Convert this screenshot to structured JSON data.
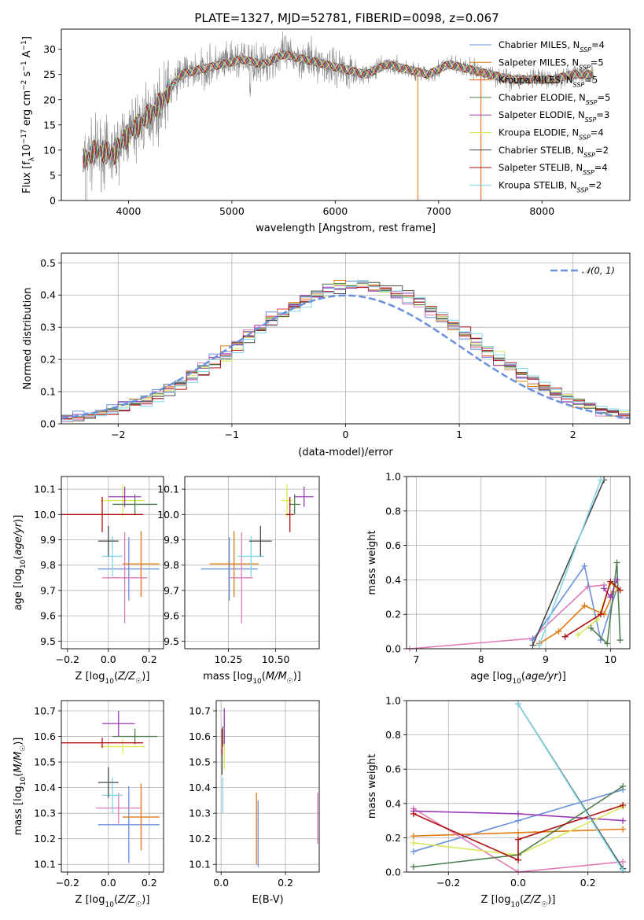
{
  "figure": {
    "title": "PLATE=1327, MJD=52781, FIBERID=0098, z=0.067"
  },
  "colors": {
    "Chabrier MILES": "#6a8fdc",
    "Salpeter MILES": "#e07a12",
    "Kroupa MILES": "#e06010",
    "Chabrier ELODIE": "#4f7f4f",
    "Salpeter ELODIE": "#9b3bb5",
    "Kroupa ELODIE": "#d8e85a",
    "Chabrier STELIB": "#4a4a4a",
    "Salpeter STELIB": "#b01010",
    "Kroupa STELIB": "#7fd6e6",
    "pink": "#e07bb8",
    "grey": "#8a8a8a"
  },
  "chart_data": [
    {
      "id": "spectrum",
      "type": "line",
      "title": "PLATE=1327, MJD=52781, FIBERID=0098, z=0.067",
      "xlabel": "wavelength [Angstrom, rest frame]",
      "ylabel": "Flux [f_λ 10^-17 erg cm^-2 s^-1 A^-1]",
      "xlim": [
        3350,
        8850
      ],
      "ylim": [
        0,
        34
      ],
      "xticks": [
        4000,
        5000,
        6000,
        7000,
        8000
      ],
      "yticks": [
        0,
        5,
        10,
        15,
        20,
        25,
        30
      ],
      "grid": false,
      "legend_position": "top-right",
      "continuum": {
        "x": [
          3560,
          3700,
          3850,
          3950,
          4100,
          4300,
          4500,
          4700,
          4900,
          5100,
          5300,
          5500,
          5700,
          5900,
          6100,
          6300,
          6500,
          6700,
          6900,
          7100,
          7300,
          7500,
          7700,
          7900,
          8100,
          8300,
          8500
        ],
        "y": [
          8,
          10,
          9,
          12,
          15,
          19,
          25,
          26,
          27,
          28,
          27,
          29,
          28,
          27,
          26,
          25,
          27,
          26,
          25,
          27,
          26,
          25,
          24,
          24,
          24,
          25,
          25
        ]
      },
      "series": [
        {
          "name": "Chabrier MILES, N_SSP=4",
          "color": "#6a8fdc"
        },
        {
          "name": "Salpeter MILES, N_SSP=5",
          "color": "#e07a12"
        },
        {
          "name": "Kroupa MILES, N_SSP=5",
          "color": "#e06010"
        },
        {
          "name": "Chabrier ELODIE, N_SSP=5",
          "color": "#4f7f4f"
        },
        {
          "name": "Salpeter ELODIE, N_SSP=3",
          "color": "#9b3bb5"
        },
        {
          "name": "Kroupa ELODIE, N_SSP=4",
          "color": "#d8e85a"
        },
        {
          "name": "Chabrier STELIB, N_SSP=2",
          "color": "#4a4a4a"
        },
        {
          "name": "Salpeter STELIB, N_SSP=4",
          "color": "#b01010"
        },
        {
          "name": "Kroupa STELIB, N_SSP=2",
          "color": "#7fd6e6"
        }
      ],
      "legend": [
        {
          "label": "Chabrier MILES, N",
          "sub": "SSP",
          "suffix": "=4",
          "color": "#6a8fdc"
        },
        {
          "label": "Salpeter MILES, N",
          "sub": "SSP",
          "suffix": "=5",
          "color": "#e07a12"
        },
        {
          "label": "Kroupa MILES, N",
          "sub": "SSP",
          "suffix": "=5",
          "color": "#e06010"
        },
        {
          "label": "Chabrier ELODIE, N",
          "sub": "SSP",
          "suffix": "=5",
          "color": "#4f7f4f"
        },
        {
          "label": "Salpeter ELODIE, N",
          "sub": "SSP",
          "suffix": "=3",
          "color": "#9b3bb5"
        },
        {
          "label": "Kroupa ELODIE, N",
          "sub": "SSP",
          "suffix": "=4",
          "color": "#d8e85a"
        },
        {
          "label": "Chabrier STELIB, N",
          "sub": "SSP",
          "suffix": "=2",
          "color": "#4a4a4a"
        },
        {
          "label": "Salpeter STELIB, N",
          "sub": "SSP",
          "suffix": "=4",
          "color": "#b01010"
        },
        {
          "label": "Kroupa STELIB, N",
          "sub": "SSP",
          "suffix": "=2",
          "color": "#7fd6e6"
        }
      ]
    },
    {
      "id": "residuals",
      "type": "line",
      "xlabel": "(data-model)/error",
      "ylabel": "Normed distribution",
      "xlim": [
        -2.5,
        2.5
      ],
      "ylim": [
        0,
        0.53
      ],
      "xticks": [
        -2,
        -1,
        0,
        1,
        2
      ],
      "yticks": [
        0.0,
        0.1,
        0.2,
        0.3,
        0.4,
        0.5
      ],
      "grid": true,
      "legend_position": "top-right",
      "legend": "𝒩(0, 1)",
      "gaussian": {
        "mu": 0,
        "sigma": 1
      },
      "bin_width": 0.1
    },
    {
      "id": "age-vs-Z",
      "type": "scatter",
      "xlabel": "Z [log10(Z/Z☉)]",
      "ylabel": "age  [log10(age/yr)]",
      "xlim": [
        -0.23,
        0.27
      ],
      "ylim": [
        9.47,
        10.15
      ],
      "xticks": [
        -0.2,
        0.0,
        0.2
      ],
      "yticks": [
        9.5,
        9.6,
        9.7,
        9.8,
        9.9,
        10.0,
        10.1
      ],
      "grid": true,
      "points": [
        {
          "x": 0.1,
          "y": 9.785,
          "xerr": 0.15,
          "yerr": 0.125,
          "color": "#6a8fdc"
        },
        {
          "x": 0.16,
          "y": 9.805,
          "xerr": 0.09,
          "yerr": 0.13,
          "color": "#e07a12"
        },
        {
          "x": 0.08,
          "y": 9.75,
          "xerr": 0.11,
          "yerr": 0.18,
          "color": "#e07bb8"
        },
        {
          "x": 0.02,
          "y": 9.835,
          "xerr": 0.05,
          "yerr": 0.08,
          "color": "#7fd6e6"
        },
        {
          "x": 0.0,
          "y": 9.895,
          "xerr": 0.05,
          "yerr": 0.06,
          "color": "#4a4a4a"
        },
        {
          "x": 0.07,
          "y": 10.055,
          "xerr": 0.11,
          "yerr": 0.065,
          "color": "#d8e85a"
        },
        {
          "x": 0.13,
          "y": 10.04,
          "xerr": 0.11,
          "yerr": 0.04,
          "color": "#4f7f4f"
        },
        {
          "x": 0.08,
          "y": 10.07,
          "xerr": 0.08,
          "yerr": 0.04,
          "color": "#9b3bb5"
        },
        {
          "x": -0.03,
          "y": 10.0,
          "xerr": 0.2,
          "yerr": 0.07,
          "color": "#b01010"
        }
      ]
    },
    {
      "id": "age-vs-mass",
      "type": "scatter",
      "xlabel": "mass [log10(M/M☉)]",
      "ylabel": "",
      "xlim": [
        10.02,
        10.73
      ],
      "ylim": [
        9.47,
        10.15
      ],
      "xticks": [
        10.25,
        10.5
      ],
      "xticklabels": [
        "10.25",
        "10.50"
      ],
      "yticks": [
        9.5,
        9.6,
        9.7,
        9.8,
        9.9,
        10.0,
        10.1
      ],
      "grid": true,
      "points": [
        {
          "x": 10.255,
          "y": 9.785,
          "xerr": 0.15,
          "yerr": 0.125,
          "color": "#6a8fdc"
        },
        {
          "x": 10.28,
          "y": 9.805,
          "xerr": 0.13,
          "yerr": 0.13,
          "color": "#e07a12"
        },
        {
          "x": 10.32,
          "y": 9.75,
          "xerr": 0.06,
          "yerr": 0.18,
          "color": "#e07bb8"
        },
        {
          "x": 10.37,
          "y": 9.835,
          "xerr": 0.07,
          "yerr": 0.08,
          "color": "#7fd6e6"
        },
        {
          "x": 10.42,
          "y": 9.895,
          "xerr": 0.06,
          "yerr": 0.06,
          "color": "#4a4a4a"
        },
        {
          "x": 10.56,
          "y": 10.055,
          "xerr": 0.03,
          "yerr": 0.065,
          "color": "#d8e85a"
        },
        {
          "x": 10.6,
          "y": 10.04,
          "xerr": 0.03,
          "yerr": 0.04,
          "color": "#4f7f4f"
        },
        {
          "x": 10.65,
          "y": 10.07,
          "xerr": 0.05,
          "yerr": 0.04,
          "color": "#9b3bb5"
        },
        {
          "x": 10.575,
          "y": 10.0,
          "xerr": 0.02,
          "yerr": 0.07,
          "color": "#b01010"
        }
      ]
    },
    {
      "id": "weight-vs-age",
      "type": "line",
      "xlabel": "age  [log10(age/yr)]",
      "ylabel": "mass weight",
      "xlim": [
        6.85,
        10.3
      ],
      "ylim": [
        0,
        1.0
      ],
      "xticks": [
        7,
        8,
        9,
        10
      ],
      "yticks": [
        0.0,
        0.2,
        0.4,
        0.6,
        0.8,
        1.0
      ],
      "grid": true,
      "series": [
        {
          "color": "#e07bb8",
          "x": [
            6.9,
            8.8,
            9.65,
            9.9
          ],
          "y": [
            0.0,
            0.06,
            0.36,
            0.37
          ]
        },
        {
          "color": "#6a8fdc",
          "x": [
            8.8,
            9.6,
            9.85,
            10.1
          ],
          "y": [
            0.05,
            0.48,
            0.05,
            0.35
          ]
        },
        {
          "color": "#e07a12",
          "x": [
            8.9,
            9.2,
            9.6,
            9.9,
            10.05
          ],
          "y": [
            0.03,
            0.1,
            0.25,
            0.2,
            0.33
          ]
        },
        {
          "color": "#d8e85a",
          "x": [
            9.5,
            9.8,
            10.0,
            10.1
          ],
          "y": [
            0.08,
            0.17,
            0.38,
            0.35
          ]
        },
        {
          "color": "#4f7f4f",
          "x": [
            9.7,
            9.95,
            10.1,
            10.15
          ],
          "y": [
            0.12,
            0.03,
            0.5,
            0.05
          ]
        },
        {
          "color": "#9b3bb5",
          "x": [
            9.9,
            10.0,
            10.1
          ],
          "y": [
            0.35,
            0.3,
            0.4
          ]
        },
        {
          "color": "#b01010",
          "x": [
            9.3,
            9.85,
            10.0,
            10.15
          ],
          "y": [
            0.07,
            0.2,
            0.39,
            0.34
          ]
        },
        {
          "color": "#4a4a4a",
          "x": [
            8.8,
            9.9
          ],
          "y": [
            0.02,
            0.98
          ]
        },
        {
          "color": "#7fd6e6",
          "x": [
            8.9,
            9.85
          ],
          "y": [
            0.02,
            0.98
          ]
        }
      ]
    },
    {
      "id": "mass-vs-Z",
      "type": "scatter",
      "xlabel": "Z [log10(Z/Z☉)]",
      "ylabel": "mass [log10(M/M☉)]",
      "xlim": [
        -0.23,
        0.27
      ],
      "ylim": [
        10.07,
        10.74
      ],
      "xticks": [
        -0.2,
        0.0,
        0.2
      ],
      "yticks": [
        10.1,
        10.2,
        10.3,
        10.4,
        10.5,
        10.6,
        10.7
      ],
      "grid": true,
      "points": [
        {
          "x": 0.1,
          "y": 10.255,
          "xerr": 0.15,
          "yerr": 0.15,
          "color": "#6a8fdc"
        },
        {
          "x": 0.16,
          "y": 10.285,
          "xerr": 0.09,
          "yerr": 0.13,
          "color": "#e07a12"
        },
        {
          "x": 0.05,
          "y": 10.32,
          "xerr": 0.11,
          "yerr": 0.06,
          "color": "#e07bb8"
        },
        {
          "x": 0.02,
          "y": 10.37,
          "xerr": 0.05,
          "yerr": 0.07,
          "color": "#7fd6e6"
        },
        {
          "x": 0.0,
          "y": 10.42,
          "xerr": 0.05,
          "yerr": 0.06,
          "color": "#4a4a4a"
        },
        {
          "x": 0.07,
          "y": 10.56,
          "xerr": 0.11,
          "yerr": 0.03,
          "color": "#d8e85a"
        },
        {
          "x": 0.13,
          "y": 10.6,
          "xerr": 0.11,
          "yerr": 0.03,
          "color": "#4f7f4f"
        },
        {
          "x": 0.05,
          "y": 10.65,
          "xerr": 0.08,
          "yerr": 0.05,
          "color": "#9b3bb5"
        },
        {
          "x": -0.03,
          "y": 10.575,
          "xerr": 0.2,
          "yerr": 0.02,
          "color": "#b01010"
        }
      ]
    },
    {
      "id": "mass-vs-EBV",
      "type": "scatter",
      "xlabel": "E(B-V)",
      "ylabel": "",
      "xlim": [
        -0.015,
        0.305
      ],
      "ylim": [
        10.07,
        10.74
      ],
      "xticks": [
        0.0,
        0.2
      ],
      "yticks": [
        10.1,
        10.2,
        10.3,
        10.4,
        10.5,
        10.6,
        10.7
      ],
      "grid": true,
      "points": [
        {
          "x": 0.115,
          "y": 10.22,
          "xerr": 0.0,
          "yerr": 0.13,
          "color": "#6a8fdc"
        },
        {
          "x": 0.11,
          "y": 10.24,
          "xerr": 0.0,
          "yerr": 0.14,
          "color": "#e07a12"
        },
        {
          "x": 0.3,
          "y": 10.28,
          "xerr": 0.0,
          "yerr": 0.1,
          "color": "#e07bb8"
        },
        {
          "x": 0.005,
          "y": 10.37,
          "xerr": 0.0,
          "yerr": 0.07,
          "color": "#7fd6e6"
        },
        {
          "x": 0.003,
          "y": 10.5,
          "xerr": 0.0,
          "yerr": 0.05,
          "color": "#4a4a4a"
        },
        {
          "x": 0.01,
          "y": 10.53,
          "xerr": 0.0,
          "yerr": 0.06,
          "color": "#d8e85a"
        },
        {
          "x": 0.005,
          "y": 10.6,
          "xerr": 0.0,
          "yerr": 0.04,
          "color": "#4f7f4f"
        },
        {
          "x": 0.01,
          "y": 10.64,
          "xerr": 0.0,
          "yerr": 0.07,
          "color": "#9b3bb5"
        },
        {
          "x": 0.003,
          "y": 10.58,
          "xerr": 0.0,
          "yerr": 0.05,
          "color": "#b01010"
        }
      ]
    },
    {
      "id": "weight-vs-Z",
      "type": "line",
      "xlabel": "Z [log10(Z/Z☉)]",
      "ylabel": "mass weight",
      "xlim": [
        -0.32,
        0.32
      ],
      "ylim": [
        0,
        1.0
      ],
      "xticks": [
        -0.2,
        0.0,
        0.2
      ],
      "yticks": [
        0.0,
        0.2,
        0.4,
        0.6,
        0.8,
        1.0
      ],
      "grid": true,
      "series": [
        {
          "color": "#6a8fdc",
          "x": [
            -0.3,
            0.0,
            0.3
          ],
          "y": [
            0.12,
            0.3,
            0.48
          ]
        },
        {
          "color": "#e07a12",
          "x": [
            -0.3,
            0.0,
            0.3
          ],
          "y": [
            0.21,
            0.23,
            0.25
          ]
        },
        {
          "color": "#e07bb8",
          "x": [
            -0.3,
            0.0,
            0.3
          ],
          "y": [
            0.37,
            0.0,
            0.06
          ]
        },
        {
          "color": "#9b3bb5",
          "x": [
            -0.3,
            0.0,
            0.3
          ],
          "y": [
            0.355,
            0.34,
            0.3
          ]
        },
        {
          "color": "#d8e85a",
          "x": [
            -0.3,
            0.0,
            0.3
          ],
          "y": [
            0.17,
            0.1,
            0.38
          ]
        },
        {
          "color": "#4f7f4f",
          "x": [
            -0.3,
            0.0,
            0.3
          ],
          "y": [
            0.03,
            0.1,
            0.5
          ]
        },
        {
          "color": "#b01010",
          "x": [
            -0.3,
            0.0,
            0.0,
            0.3
          ],
          "y": [
            0.34,
            0.07,
            0.19,
            0.39
          ]
        },
        {
          "color": "#4a4a4a",
          "x": [
            0.0,
            0.3
          ],
          "y": [
            0.98,
            0.02
          ]
        },
        {
          "color": "#7fd6e6",
          "x": [
            0.0,
            0.3
          ],
          "y": [
            0.98,
            0.01
          ]
        }
      ]
    }
  ]
}
